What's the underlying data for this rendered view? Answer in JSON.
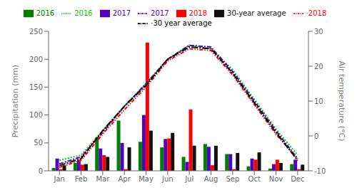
{
  "chart_data": {
    "type": "bar",
    "categories": [
      "Jan",
      "Feb",
      "Mar",
      "Apr",
      "May",
      "Jun",
      "Jul",
      "Aug",
      "Sep",
      "Oct",
      "Nov",
      "Dec"
    ],
    "ylabel": "Precipitation (mm)",
    "y2label": "Air temperature (°C)",
    "ylim": [
      0,
      250
    ],
    "yticks": [
      0,
      50,
      100,
      150,
      200,
      250
    ],
    "y2lim": [
      -10,
      30
    ],
    "y2ticks": [
      -10,
      0,
      10,
      20,
      30
    ],
    "grid": false,
    "legend": "top",
    "series": [
      {
        "name": "2016",
        "type": "bar",
        "color": "#008000",
        "values": [
          5,
          14,
          60,
          90,
          52,
          42,
          25,
          48,
          30,
          8,
          4,
          12
        ]
      },
      {
        "name": "2017",
        "type": "bar",
        "color": "#5500bb",
        "values": [
          22,
          20,
          40,
          50,
          100,
          57,
          16,
          43,
          30,
          22,
          12,
          20
        ]
      },
      {
        "name": "2018",
        "type": "bar",
        "color": "#ff0000",
        "values": [
          3,
          11,
          28,
          3,
          230,
          58,
          110,
          10,
          3,
          20,
          20,
          3
        ]
      },
      {
        "name": "30-year average",
        "type": "bar",
        "color": "#111111",
        "values": [
          10,
          12,
          25,
          42,
          72,
          68,
          45,
          45,
          32,
          33,
          14,
          11
        ]
      },
      {
        "name": "2016",
        "type": "line",
        "axis": "y2",
        "line_style": "dotted",
        "color": "#00cc00",
        "values": [
          -7.0,
          -5.5,
          1.5,
          8.5,
          15.0,
          22.0,
          26.0,
          25.0,
          19.0,
          10.5,
          2.0,
          -5.5
        ]
      },
      {
        "name": "2017",
        "type": "line",
        "axis": "y2",
        "line_style": "dashdot",
        "color": "#5500bb",
        "values": [
          -8.0,
          -6.0,
          1.0,
          8.5,
          15.0,
          22.0,
          26.0,
          25.5,
          18.5,
          10.0,
          1.5,
          -6.5
        ]
      },
      {
        "name": "·2018",
        "type": "line",
        "axis": "y2",
        "line_style": "dashdotdot",
        "color": "#ff0000",
        "values": [
          -9.0,
          -7.0,
          0.5,
          7.5,
          14.0,
          21.5,
          25.0,
          24.5,
          17.5,
          9.0,
          0.5,
          -6.5
        ]
      },
      {
        "name": "·30 year average",
        "type": "line",
        "axis": "y2",
        "line_style": "longdashdot",
        "color": "#000000",
        "values": [
          -8.5,
          -6.5,
          1.5,
          8.5,
          14.5,
          22.0,
          25.5,
          25.0,
          18.0,
          9.5,
          1.0,
          -7.0
        ]
      }
    ]
  }
}
